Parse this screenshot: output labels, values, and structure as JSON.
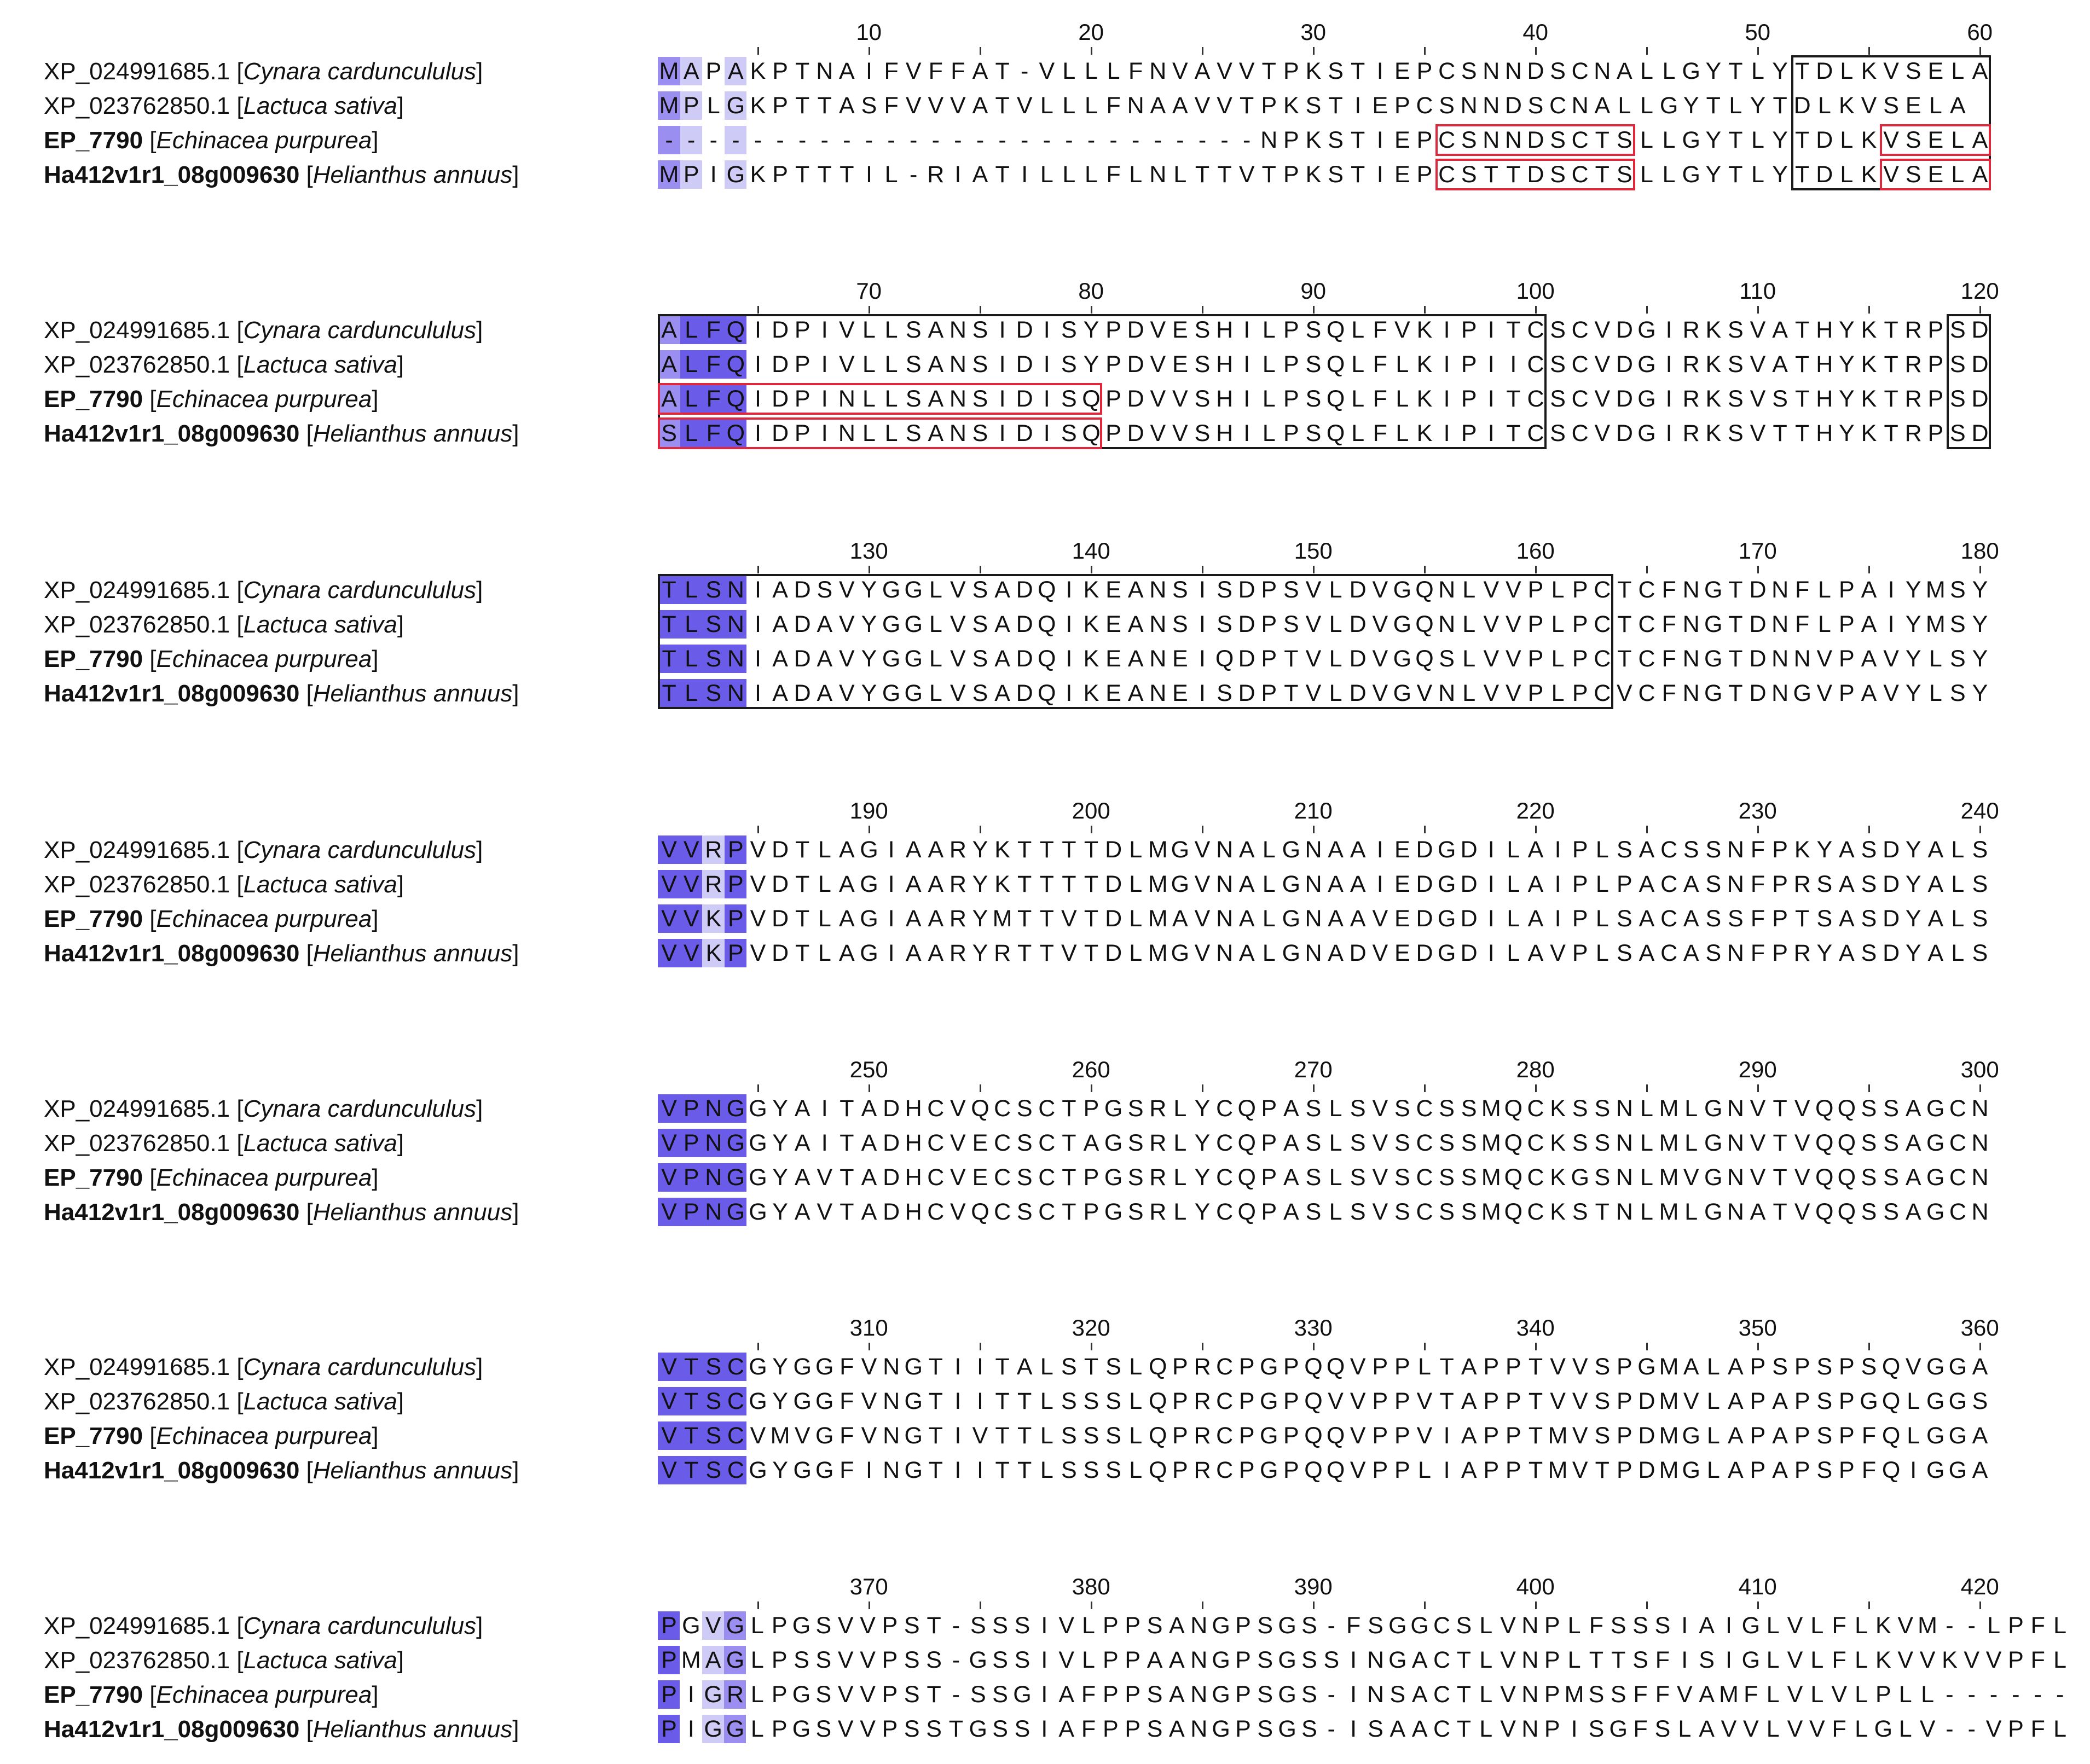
{
  "figure": {
    "type": "multiple sequence alignment",
    "block_width": 60,
    "shading_colors": {
      "high": "#6a5be9",
      "medium": "#9a8ff0",
      "low": "#cfcbf7",
      "none": "#ffffff"
    },
    "box_colors": {
      "domain": "#1a1a1a",
      "peptide": "#e0283c"
    }
  },
  "sequences": [
    {
      "id": "XP_024991685.1",
      "species": "Cynara carduncululus",
      "id_bold": false
    },
    {
      "id": "XP_023762850.1",
      "species": "Lactuca sativa",
      "id_bold": false
    },
    {
      "id": "EP_7790",
      "species": "Echinacea purpurea",
      "id_bold": true
    },
    {
      "id": "Ha412v1r1_08g009630",
      "species": "Helianthus annuus",
      "id_bold": true
    }
  ],
  "blocks": [
    {
      "numbers": [
        "10",
        "20",
        "30",
        "40",
        "50",
        "60"
      ],
      "rows": [
        "MAPAKPTNAIFVFFAT-VLLLFNVAVVTPKSTIEPCSNNDSCNALLGYTLYTDLKVSELA",
        "MPLGKPTTASFVVVATVLLLFNAAVVTPKSTIEPCSNNDSCNALLGYTLYTDLKVSELA",
        "---------------------------NPKSTIEPCSNNDSCTSLLGYTLYTDLKVSELA",
        "MPIGKPTTTIL-RIATILLLFLNLTTVTPKSTIEPCSTTDSCTSLLGYTLYTDLKVSELA"
      ]
    },
    {
      "numbers": [
        "70",
        "80",
        "90",
        "100",
        "110",
        "120"
      ],
      "rows": [
        "ALFQIDPIVLLSANSIDISYPDVESHILPSQLFVKIPITCSCVDGIRKSVATHYKTRPSD",
        "ALFQIDPIVLLSANSIDISYPDVESHILPSQLFLKIPIICSCVDGIRKSVATHYKTRPSD",
        "ALFQIDPINLLSANSIDISQPDVVSHILPSQLFLKIPITCSCVDGIRKSVSTHYKTRPSD",
        "SLFQIDPINLLSANSIDISQPDVVSHILPSQLFLKIPITCSCVDGIRKSVTTHYKTRPSD"
      ]
    },
    {
      "numbers": [
        "130",
        "140",
        "150",
        "160",
        "170",
        "180"
      ],
      "rows": [
        "TLSNIADSVYGGLVSADQIKEANSISDPSVLDVGQNLVVPLPCTCFNGTDNFLPAIYMSY",
        "TLSNIADAVYGGLVSADQIKEANSISDPSVLDVGQNLVVPLPCTCFNGTDNFLPAIYMSY",
        "TLSNIADAVYGGLVSADQIKEANEIQDPTVLDVGQSLVVPLPCTCFNGTDNNVPAVYLSY",
        "TLSNIADAVYGGLVSADQIKEANEISDPTVLDVGVNLVVPLPCVCFNGTDNGVPAVYLSY"
      ]
    },
    {
      "numbers": [
        "190",
        "200",
        "210",
        "220",
        "230",
        "240"
      ],
      "rows": [
        "VVRPVDTLAGIAARYKTTTTDLMGVNALGNAAIEDGDILAIPLSACSSNFPKYASDYALS",
        "VVRPVDTLAGIAARYKTTTTDLMGVNALGNAAIEDGDILAIPLPACASNFPRSASDYALS",
        "VVKPVDTLAGIAARYMTTVTDLMAVNALGNAAVEDGDILAIPLSACASSFPTSASDYALS",
        "VVKPVDTLAGIAARYRTTVTDLMGVNALGNADVEDGDILAVPLSACASNFPRYASDYALS"
      ]
    },
    {
      "numbers": [
        "250",
        "260",
        "270",
        "280",
        "290",
        "300"
      ],
      "rows": [
        "VPNGGYAITADHCVQCSCTPGSRLYCQPASLSVSCSSMQCKSSNLMLGNVTVQQSSAGCN",
        "VPNGGYAITADHCVECSCTAGSRLYCQPASLSVSCSSMQCKSSNLMLGNVTVQQSSAGCN",
        "VPNGGYAVTADHCVECSCTPGSRLYCQPASLSVSCSSMQCKGSNLMVGNVTVQQSSAGCN",
        "VPNGGYAVTADHCVQCSCTPGSRLYCQPASLSVSCSSMQCKSTNLMLGNATVQQSSAGCN"
      ]
    },
    {
      "numbers": [
        "310",
        "320",
        "330",
        "340",
        "350",
        "360"
      ],
      "rows": [
        "VTSCGYGGFVNGTIITALSTSLQPRCPGPQQVPPLTAPPTVVSPGMALAPSPSPSQVGGA",
        "VTSCGYGGFVNGTIITTLSSSLQPRCPGPQVVPPVTAPPTVVSPDMVLAPAPSPGQLGGS",
        "VTSCVMVGFVNGTIVTTLSSSLQPRCPGPQQVPPVIAPPTMVSPDMGLAPAPSPFQLGGA",
        "VTSCGYGGFINGTIITTLSSSLQPRCPGPQQVPPLIAPPTMVTPDMGLAPAPSPFQIGGA"
      ]
    },
    {
      "numbers": [
        "370",
        "380",
        "390",
        "400",
        "410",
        "420"
      ],
      "rows": [
        "PGVGLPGSVVPST-SSSIVLPPSANGPSGS-FSGGCSLVNPLFSSSIAIGLVLFLKVM--LPFL",
        "PMAGLPSSVVPSS-GSSIVLPPAANGPSGSSINGACTLVNPLTTSFISIGLVLFLKVVKVVPFL",
        "PIGRLPGSVVPST-SSGIAFPPSANGPSGS-INSACTLVNPMSSFFVAMFLVLVLPLL------",
        "PIGGLPGSVVPSSTGSSIAFPPSANGPSGS-ISAACTLVNPISGFSLAVVLVVFLGLV--VPFL"
      ]
    }
  ],
  "domain_boxes": [
    {
      "block": 1,
      "start": 52,
      "end": 60,
      "rows": [
        0,
        3
      ],
      "kind": "domain"
    },
    {
      "block": 2,
      "start": 1,
      "end": 40,
      "rows": [
        0,
        3
      ],
      "kind": "domain"
    },
    {
      "block": 2,
      "start": 59,
      "end": 60,
      "rows": [
        0,
        3
      ],
      "kind": "domain"
    },
    {
      "block": 3,
      "start": 1,
      "end": 43,
      "rows": [
        0,
        3
      ],
      "kind": "domain"
    },
    {
      "block": 1,
      "start": 36,
      "end": 44,
      "rows": [
        2,
        2
      ],
      "kind": "peptide"
    },
    {
      "block": 1,
      "start": 36,
      "end": 44,
      "rows": [
        3,
        3
      ],
      "kind": "peptide"
    },
    {
      "block": 1,
      "start": 56,
      "end": 60,
      "rows": [
        2,
        2
      ],
      "kind": "peptide"
    },
    {
      "block": 1,
      "start": 56,
      "end": 60,
      "rows": [
        3,
        3
      ],
      "kind": "peptide"
    },
    {
      "block": 2,
      "start": 1,
      "end": 20,
      "rows": [
        2,
        2
      ],
      "kind": "peptide"
    },
    {
      "block": 2,
      "start": 1,
      "end": 20,
      "rows": [
        3,
        3
      ],
      "kind": "peptide"
    }
  ]
}
